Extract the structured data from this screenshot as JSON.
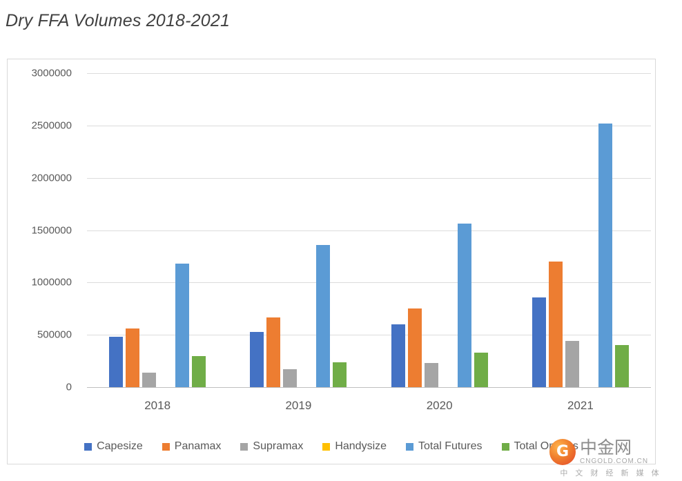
{
  "title": "Dry FFA Volumes 2018-2021",
  "chart_data": {
    "type": "bar",
    "title": "Dry FFA Volumes 2018-2021",
    "categories": [
      "2018",
      "2019",
      "2020",
      "2021"
    ],
    "series": [
      {
        "name": "Capesize",
        "color": "#4472C4",
        "values": [
          480000,
          530000,
          600000,
          860000
        ]
      },
      {
        "name": "Panamax",
        "color": "#ED7D31",
        "values": [
          560000,
          665000,
          750000,
          1200000
        ]
      },
      {
        "name": "Supramax",
        "color": "#A5A5A5",
        "values": [
          140000,
          170000,
          230000,
          440000
        ]
      },
      {
        "name": "Handysize",
        "color": "#FFC000",
        "values": [
          0,
          0,
          0,
          0
        ]
      },
      {
        "name": "Total Futures",
        "color": "#5B9BD5",
        "values": [
          1180000,
          1360000,
          1560000,
          2520000
        ]
      },
      {
        "name": "Total Options",
        "color": "#70AD47",
        "values": [
          300000,
          235000,
          330000,
          400000
        ]
      }
    ],
    "ylim": [
      0,
      3000000
    ],
    "ytick_step": 500000,
    "yticks": [
      "3000000",
      "2500000",
      "2000000",
      "1500000",
      "1000000",
      "500000",
      "0"
    ],
    "grid": "horizontal",
    "legend_position": "bottom"
  },
  "watermark": {
    "logo_letter": "G",
    "brand": "中金网",
    "domain": "CNGOLD.COM.CN",
    "tagline": "中 文 财 经 新 媒 体"
  }
}
